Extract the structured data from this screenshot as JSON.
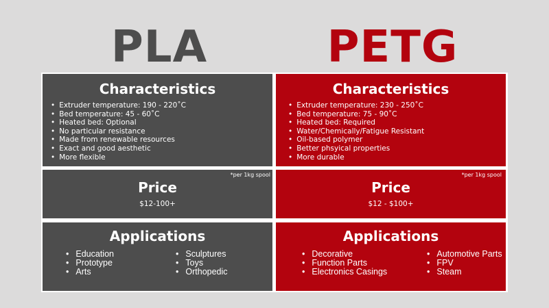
{
  "colors": {
    "pla": "#4d4d4d",
    "petg": "#b3030e",
    "background": "#dcdbdb"
  },
  "pla": {
    "title": "PLA",
    "characteristics": {
      "heading": "Characteristics",
      "items": [
        "Extruder temperature: 190 - 220˚C",
        "Bed temperature: 45 - 60˚C",
        "Heated bed: Optional",
        "No particular resistance",
        "Made from renewable resources",
        "Exact and good aesthetic",
        "More flexible"
      ]
    },
    "price": {
      "heading": "Price",
      "note": "*per 1kg spool",
      "value": "$12-100+"
    },
    "applications": {
      "heading": "Applications",
      "col1": [
        "Education",
        "Prototype",
        "Arts"
      ],
      "col2": [
        "Sculptures",
        "Toys",
        "Orthopedic"
      ]
    }
  },
  "petg": {
    "title": "PETG",
    "characteristics": {
      "heading": "Characteristics",
      "items": [
        "Extruder temperature: 230 - 250˚C",
        "Bed temperature: 75 - 90˚C",
        "Heated bed: Required",
        "Water/Chemically/Fatigue Resistant",
        "Oil-based polymer",
        "Better phsyical properties",
        "More durable"
      ]
    },
    "price": {
      "heading": "Price",
      "note": "*per 1kg spool",
      "value": "$12 - $100+"
    },
    "applications": {
      "heading": "Applications",
      "col1": [
        "Decorative",
        "Function Parts",
        "Electronics Casings"
      ],
      "col2": [
        "Automotive Parts",
        "FPV",
        "Steam"
      ]
    }
  }
}
